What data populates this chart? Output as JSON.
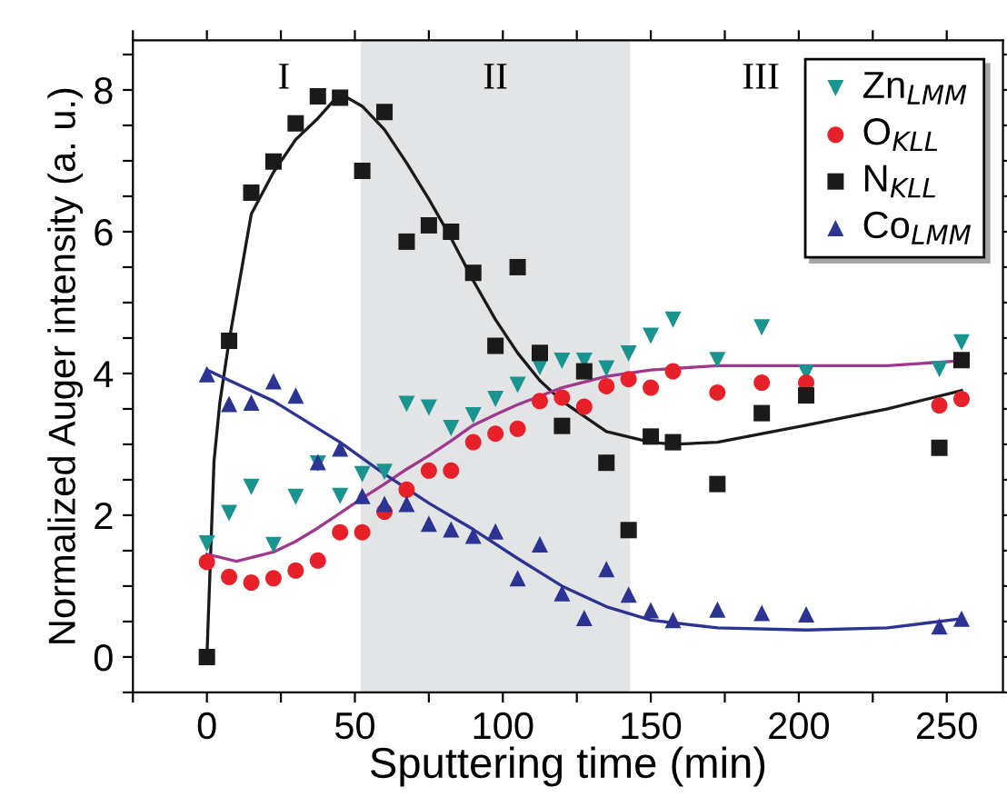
{
  "chart_data": {
    "type": "scatter",
    "xlabel": "Sputtering time (min)",
    "ylabel": "Normalized Auger intensity (a. u.)",
    "xlim": [
      -25,
      269
    ],
    "ylim": [
      -0.5,
      8.7
    ],
    "xticks": [
      {
        "value": -25,
        "label": null
      },
      0,
      {
        "value": 25,
        "label": null
      },
      50,
      {
        "value": 75,
        "label": null
      },
      100,
      {
        "value": 125,
        "label": null
      },
      150,
      {
        "value": 175,
        "label": null
      },
      200,
      {
        "value": 225,
        "label": null
      },
      250
    ],
    "yticks": [
      {
        "value": -0.5,
        "label": null
      },
      0,
      {
        "value": 0.5,
        "label": null
      },
      {
        "value": 1,
        "label": null
      },
      {
        "value": 1.5,
        "label": null
      },
      2,
      {
        "value": 2.5,
        "label": null
      },
      {
        "value": 3,
        "label": null
      },
      {
        "value": 3.5,
        "label": null
      },
      4,
      {
        "value": 4.5,
        "label": null
      },
      {
        "value": 5,
        "label": null
      },
      {
        "value": 5.5,
        "label": null
      },
      6,
      {
        "value": 6.5,
        "label": null
      },
      {
        "value": 7,
        "label": null
      },
      {
        "value": 7.5,
        "label": null
      },
      8,
      {
        "value": 8.5,
        "label": null
      }
    ],
    "grid": false,
    "legend": "top right",
    "bands": [
      {
        "axis": "x",
        "from": 52,
        "to": 143,
        "color": "#e3e4e6"
      }
    ],
    "annotations": [
      "I",
      "II",
      "III"
    ],
    "series": [
      {
        "name": "Zn$_{LMM}$",
        "marker": "triangle_down",
        "color": "#1a9490",
        "x": [
          0,
          7.5,
          15,
          22.5,
          30,
          37.5,
          45,
          52.5,
          60,
          67.5,
          75,
          82.5,
          90,
          97.5,
          105,
          112.5,
          120,
          127.5,
          135,
          142.5,
          150,
          157.5,
          172.5,
          187.5,
          202.5,
          247.5,
          255
        ],
        "values": [
          1.6,
          2.03,
          2.4,
          1.58,
          2.26,
          2.73,
          2.27,
          2.58,
          2.61,
          3.57,
          3.52,
          3.23,
          3.41,
          3.64,
          3.84,
          4.09,
          4.18,
          4.18,
          4.07,
          4.28,
          4.53,
          4.76,
          4.19,
          4.65,
          4.01,
          4.06,
          4.44
        ]
      },
      {
        "name": "O$_{KLL}$",
        "marker": "circle",
        "color": "#e8202a",
        "x": [
          0,
          7.5,
          15,
          22.5,
          30,
          37.5,
          45,
          52.5,
          60,
          67.5,
          75,
          82.5,
          90,
          97.5,
          105,
          112.5,
          120,
          127.5,
          135,
          142.5,
          150,
          157.5,
          172.5,
          187.5,
          202.5,
          247.5,
          255
        ],
        "values": [
          1.34,
          1.13,
          1.05,
          1.11,
          1.22,
          1.36,
          1.76,
          1.76,
          2.05,
          2.36,
          2.63,
          2.63,
          3.03,
          3.15,
          3.22,
          3.61,
          3.66,
          3.53,
          3.82,
          3.92,
          3.8,
          4.03,
          3.73,
          3.87,
          3.87,
          3.55,
          3.64
        ]
      },
      {
        "name": "N$_{KLL}$",
        "marker": "square",
        "color": "#1a1a1a",
        "x": [
          0,
          7.5,
          15,
          22.5,
          30,
          37.5,
          45,
          52.5,
          60,
          67.5,
          75,
          82.5,
          90,
          97.5,
          105,
          112.5,
          120,
          127.5,
          135,
          142.5,
          150,
          157.5,
          172.5,
          187.5,
          202.5,
          247.5,
          255
        ],
        "values": [
          0,
          4.46,
          6.55,
          6.99,
          7.53,
          7.91,
          7.89,
          6.86,
          7.69,
          5.86,
          6.09,
          6.0,
          5.42,
          4.39,
          5.5,
          4.29,
          3.26,
          4.03,
          2.74,
          1.79,
          3.11,
          3.03,
          2.44,
          3.44,
          3.69,
          2.95,
          4.19
        ]
      },
      {
        "name": "Co$_{LMM}$",
        "marker": "triangle",
        "color": "#2b3393",
        "x": [
          0,
          7.5,
          15,
          22.5,
          30,
          37.5,
          45,
          52.5,
          60,
          67.5,
          75,
          82.5,
          90,
          97.5,
          105,
          112.5,
          120,
          127.5,
          135,
          142.5,
          150,
          157.5,
          172.5,
          187.5,
          202.5,
          247.5,
          255
        ],
        "values": [
          3.99,
          3.57,
          3.59,
          3.89,
          3.69,
          2.75,
          2.94,
          2.27,
          2.16,
          2.16,
          1.88,
          1.8,
          1.71,
          1.77,
          1.11,
          1.59,
          0.9,
          0.55,
          1.24,
          0.88,
          0.66,
          0.52,
          0.67,
          0.62,
          0.6,
          0.43,
          0.54
        ]
      },
      {
        "type": "line",
        "marker": "none",
        "color": "#1a1a1a",
        "x": [
          0,
          2.4,
          4.4,
          7.5,
          15,
          22.5,
          30,
          37.5,
          45,
          52.5,
          60,
          67.5,
          75,
          82.5,
          90,
          97.5,
          105,
          112.5,
          120,
          135,
          150,
          157.5,
          172.5,
          202.5,
          230,
          255
        ],
        "values": [
          0,
          2.76,
          3.6,
          4.46,
          6.25,
          6.84,
          7.3,
          7.6,
          7.95,
          7.77,
          7.44,
          6.97,
          6.46,
          5.91,
          5.31,
          4.76,
          4.29,
          3.9,
          3.61,
          3.18,
          3.03,
          3.0,
          3.03,
          3.27,
          3.5,
          3.76
        ]
      },
      {
        "type": "line",
        "marker": "none",
        "color": "#a0388e",
        "x": [
          0,
          10,
          22.5,
          30,
          37.5,
          45,
          52.5,
          60,
          67.5,
          75,
          82.5,
          90,
          97.5,
          105,
          120,
          135,
          150,
          172.5,
          202.5,
          230,
          255
        ],
        "values": [
          1.45,
          1.35,
          1.48,
          1.63,
          1.82,
          2.03,
          2.24,
          2.44,
          2.65,
          2.84,
          3.05,
          3.27,
          3.42,
          3.56,
          3.8,
          3.96,
          4.05,
          4.11,
          4.11,
          4.11,
          4.18
        ]
      },
      {
        "type": "line",
        "marker": "none",
        "color": "#2b3393",
        "x": [
          0,
          22.5,
          45,
          60,
          75,
          90,
          105,
          120,
          135,
          150,
          172.5,
          202.5,
          230,
          255
        ],
        "values": [
          4.05,
          3.61,
          3.03,
          2.58,
          2.17,
          1.8,
          1.39,
          1.0,
          0.71,
          0.52,
          0.41,
          0.38,
          0.41,
          0.54
        ]
      }
    ]
  }
}
